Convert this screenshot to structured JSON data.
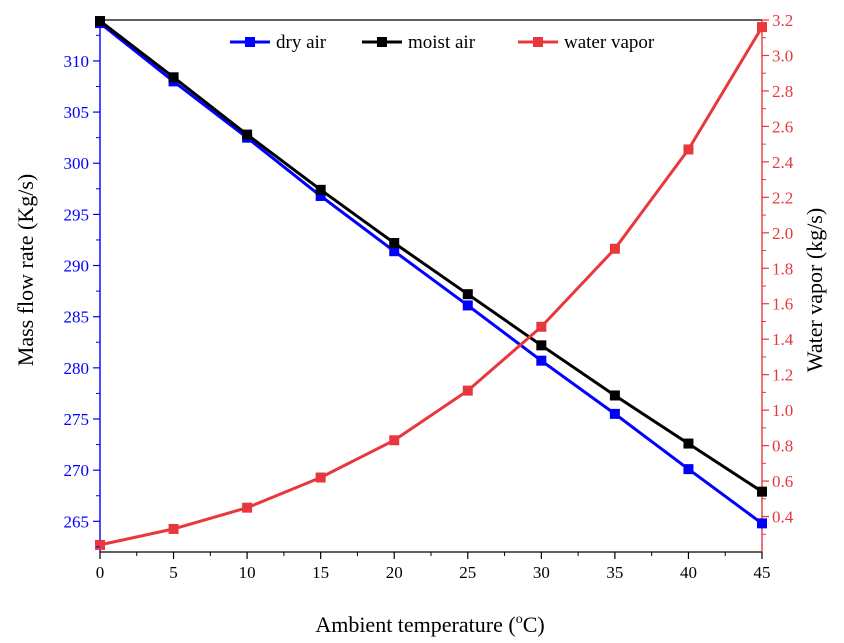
{
  "chart_data": {
    "type": "line",
    "x": [
      0,
      5,
      10,
      15,
      20,
      25,
      30,
      35,
      40,
      45
    ],
    "xlabel": {
      "prefix": "Ambient temperature (",
      "sup": "o",
      "suffix": "C)"
    },
    "ylabel_left": "Mass flow rate (Kg/s)",
    "ylabel_right": "Water vapor (kg/s)",
    "xlim": [
      0,
      45
    ],
    "ylim_left": [
      262,
      314
    ],
    "ylim_right": [
      0.2,
      3.2
    ],
    "xticks": [
      "0",
      "5",
      "10",
      "15",
      "20",
      "25",
      "30",
      "35",
      "40",
      "45"
    ],
    "yticks_left": [
      "265",
      "270",
      "275",
      "280",
      "285",
      "290",
      "295",
      "300",
      "305",
      "310"
    ],
    "yticks_right": [
      "0.4",
      "0.6",
      "0.8",
      "1.0",
      "1.2",
      "1.4",
      "1.6",
      "1.8",
      "2.0",
      "2.2",
      "2.4",
      "2.6",
      "2.8",
      "3.0",
      "3.2"
    ],
    "legend_position": "top",
    "grid": false,
    "colors": {
      "left_axis": "#0000ff",
      "right_axis": "#e8383d"
    },
    "series": [
      {
        "name": "dry air",
        "axis": "left",
        "color": "#0000ff",
        "values": [
          313.7,
          308.0,
          302.5,
          296.8,
          291.4,
          286.1,
          280.7,
          275.5,
          270.1,
          264.8
        ]
      },
      {
        "name": "moist air",
        "axis": "left",
        "color": "#000000",
        "values": [
          313.9,
          308.4,
          302.8,
          297.4,
          292.2,
          287.2,
          282.2,
          277.3,
          272.6,
          267.9
        ]
      },
      {
        "name": "water vapor",
        "axis": "right",
        "color": "#e8383d",
        "values": [
          0.24,
          0.33,
          0.45,
          0.62,
          0.83,
          1.11,
          1.47,
          1.91,
          2.47,
          3.16
        ]
      }
    ]
  }
}
